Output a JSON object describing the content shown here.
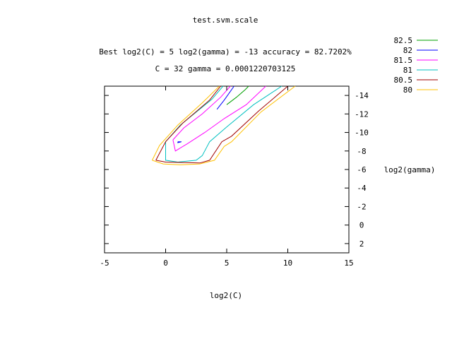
{
  "chart_data": {
    "type": "line",
    "title": "test.svm.scale",
    "subtitle_line1": "Best log2(C) = 5  log2(gamma) = -13  accuracy = 82.7202%",
    "subtitle_line2": "C = 32  gamma = 0.0001220703125",
    "xlabel": "log2(C)",
    "ylabel": "log2(gamma)",
    "xlim": [
      -5,
      15
    ],
    "ylim": [
      -15,
      3
    ],
    "y_reversed": true,
    "y_axis_side": "right",
    "xticks": [
      -5,
      0,
      5,
      10,
      15
    ],
    "yticks": [
      -14,
      -12,
      -10,
      -8,
      -6,
      -4,
      -2,
      0,
      2
    ],
    "grid": false,
    "legend_position": "top-right",
    "series": [
      {
        "name": "82.5",
        "color": "#00a000",
        "points": [
          [
            5,
            -13.0
          ],
          [
            5.8,
            -13.8
          ],
          [
            6.5,
            -14.6
          ],
          [
            6.8,
            -15.0
          ]
        ]
      },
      {
        "name": "82",
        "color": "#0000ff",
        "points": [
          [
            1.0,
            -9.0
          ],
          [
            1.3,
            -9.0
          ],
          [
            1.0,
            -8.9
          ],
          [
            1.0,
            -9.0
          ]
        ]
      },
      {
        "name": "82",
        "color": "#0000ff",
        "points": [
          [
            4.2,
            -12.5
          ],
          [
            4.8,
            -13.5
          ],
          [
            5.6,
            -15.0
          ]
        ]
      },
      {
        "name": "81.5",
        "color": "#ff00ff",
        "points": [
          [
            0.6,
            -9.2
          ],
          [
            0.8,
            -8.0
          ],
          [
            1.8,
            -8.8
          ],
          [
            3.2,
            -10.0
          ],
          [
            4.8,
            -11.5
          ],
          [
            6.6,
            -13.0
          ],
          [
            8.2,
            -15.0
          ]
        ]
      },
      {
        "name": "81.5",
        "color": "#ff00ff",
        "points": [
          [
            0.6,
            -9.2
          ],
          [
            1.5,
            -10.5
          ],
          [
            3.0,
            -12.0
          ],
          [
            4.5,
            -13.8
          ],
          [
            5.3,
            -15.0
          ]
        ]
      },
      {
        "name": "81",
        "color": "#00c0c0",
        "points": [
          [
            0.0,
            -9.0
          ],
          [
            0.0,
            -7.0
          ],
          [
            1.0,
            -6.8
          ],
          [
            2.5,
            -7.0
          ],
          [
            3.0,
            -7.5
          ],
          [
            3.6,
            -9.0
          ],
          [
            5.0,
            -10.6
          ],
          [
            7.2,
            -13.0
          ],
          [
            9.5,
            -15.0
          ]
        ]
      },
      {
        "name": "81",
        "color": "#00c0c0",
        "points": [
          [
            0.0,
            -9.0
          ],
          [
            1.2,
            -10.8
          ],
          [
            2.6,
            -12.3
          ],
          [
            3.8,
            -13.6
          ],
          [
            4.7,
            -15.0
          ]
        ]
      },
      {
        "name": "80.5",
        "color": "#a00000",
        "points": [
          [
            -0.8,
            -7.0
          ],
          [
            0.0,
            -6.8
          ],
          [
            2.8,
            -6.7
          ],
          [
            3.6,
            -7.0
          ],
          [
            4.6,
            -9.0
          ],
          [
            5.4,
            -9.6
          ],
          [
            7.6,
            -12.3
          ],
          [
            10.0,
            -15.0
          ]
        ]
      },
      {
        "name": "80.5",
        "color": "#a00000",
        "points": [
          [
            -0.8,
            -7.0
          ],
          [
            0.0,
            -9.0
          ],
          [
            1.4,
            -11.0
          ],
          [
            3.6,
            -13.5
          ],
          [
            4.5,
            -15.0
          ]
        ]
      },
      {
        "name": "80",
        "color": "#ffc000",
        "points": [
          [
            -1.1,
            -7.0
          ],
          [
            -0.2,
            -6.6
          ],
          [
            1.2,
            -6.5
          ],
          [
            2.8,
            -6.6
          ],
          [
            4.0,
            -7.0
          ],
          [
            4.8,
            -8.5
          ],
          [
            5.4,
            -9.0
          ],
          [
            7.8,
            -12.2
          ],
          [
            10.6,
            -15.0
          ]
        ]
      },
      {
        "name": "80",
        "color": "#ffc000",
        "points": [
          [
            -1.1,
            -7.0
          ],
          [
            -0.5,
            -8.6
          ],
          [
            1.0,
            -10.8
          ],
          [
            3.0,
            -13.2
          ],
          [
            4.4,
            -15.0
          ]
        ]
      }
    ],
    "legend": [
      {
        "label": "82.5",
        "color": "#00a000"
      },
      {
        "label": "82",
        "color": "#0000ff"
      },
      {
        "label": "81.5",
        "color": "#ff00ff"
      },
      {
        "label": "81",
        "color": "#00c0c0"
      },
      {
        "label": "80.5",
        "color": "#a00000"
      },
      {
        "label": "80",
        "color": "#ffc000"
      }
    ]
  }
}
